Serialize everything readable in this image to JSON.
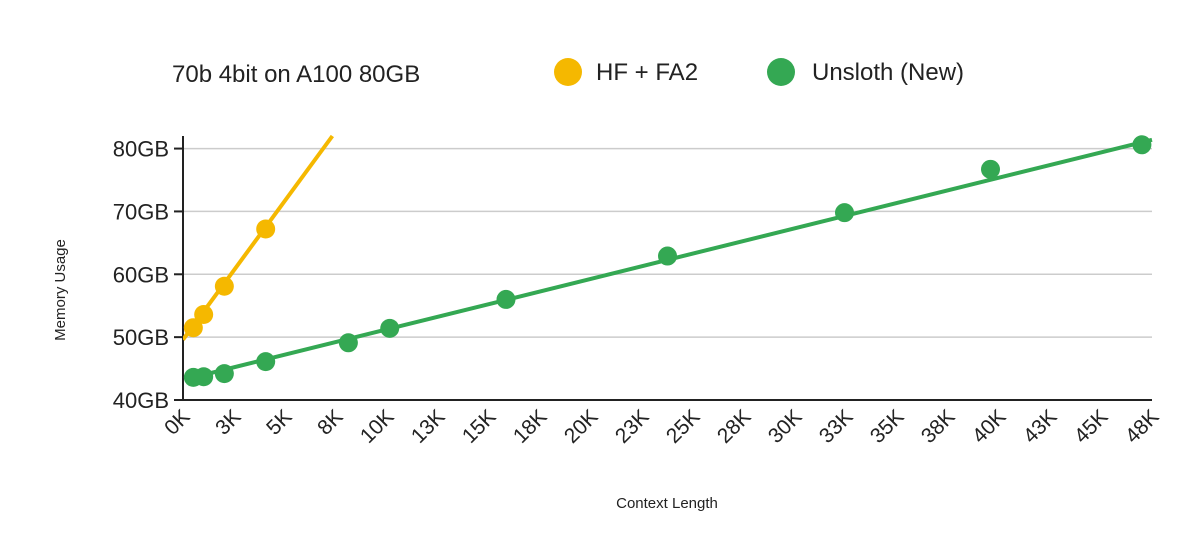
{
  "chart_data": {
    "type": "line",
    "title": "70b 4bit on A100 80GB",
    "xlabel": "Context Length",
    "ylabel": "Memory Usage",
    "x_ticks": [
      "0K",
      "3K",
      "5K",
      "8K",
      "10K",
      "13K",
      "15K",
      "18K",
      "20K",
      "23K",
      "25K",
      "28K",
      "30K",
      "33K",
      "35K",
      "38K",
      "40K",
      "43K",
      "45K",
      "48K"
    ],
    "y_ticks": [
      "40GB",
      "50GB",
      "60GB",
      "70GB",
      "80GB"
    ],
    "xlim": [
      0,
      48000
    ],
    "ylim": [
      40,
      82
    ],
    "legend_position": "top",
    "grid": true,
    "series": [
      {
        "name": "HF + FA2",
        "color": "#F5B800",
        "x": [
          512,
          1024,
          2048,
          4096
        ],
        "y": [
          51.5,
          53.6,
          58.1,
          67.2
        ],
        "trend": {
          "x": [
            0,
            7400
          ],
          "y": [
            49.6,
            82
          ]
        }
      },
      {
        "name": "Unsloth (New)",
        "color": "#34A853",
        "x": [
          512,
          1024,
          2048,
          4096,
          8192,
          10240,
          16000,
          24000,
          32768,
          40000,
          47500
        ],
        "y": [
          43.6,
          43.7,
          44.2,
          46.1,
          49.1,
          51.4,
          56.0,
          62.9,
          69.8,
          76.7,
          80.6
        ],
        "trend": {
          "x": [
            512,
            48000
          ],
          "y": [
            43.6,
            81.4
          ]
        }
      }
    ]
  }
}
